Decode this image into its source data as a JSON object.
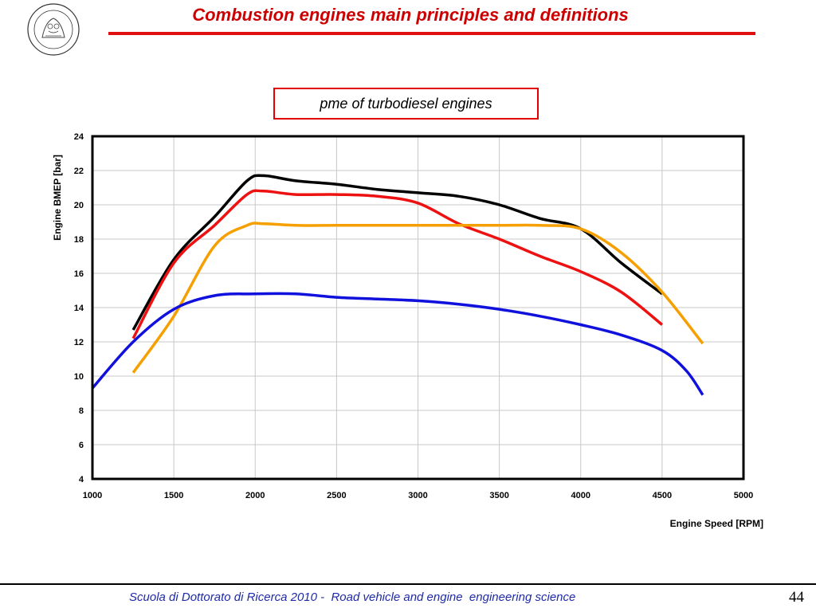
{
  "header": {
    "title": "Combustion engines main principles and definitions",
    "logo_label": "polimi-logo"
  },
  "chart_data": {
    "type": "line",
    "title": "pme of turbodiesel engines",
    "xlabel": "Engine Speed [RPM]",
    "ylabel": "Engine BMEP [bar]",
    "xlim": [
      1000,
      5000
    ],
    "ylim": [
      4,
      24
    ],
    "xticks": [
      1000,
      1500,
      2000,
      2500,
      3000,
      3500,
      4000,
      4500,
      5000
    ],
    "yticks": [
      4,
      6,
      8,
      10,
      12,
      14,
      16,
      18,
      20,
      22,
      24
    ],
    "grid": true,
    "legend": "none",
    "series": [
      {
        "color": "#000000",
        "x": [
          1250,
          1500,
          1750,
          1950,
          2050,
          2250,
          2500,
          2750,
          3000,
          3250,
          3500,
          3750,
          4000,
          4250,
          4500
        ],
        "y": [
          12.7,
          16.8,
          19.3,
          21.4,
          21.7,
          21.4,
          21.2,
          20.9,
          20.7,
          20.5,
          20.0,
          19.2,
          18.6,
          16.6,
          14.8
        ]
      },
      {
        "color": "#ee1111",
        "x": [
          1250,
          1500,
          1750,
          1950,
          2050,
          2250,
          2500,
          2750,
          3000,
          3250,
          3500,
          3750,
          4000,
          4250,
          4500
        ],
        "y": [
          12.2,
          16.6,
          18.8,
          20.6,
          20.8,
          20.6,
          20.6,
          20.5,
          20.1,
          18.9,
          18.0,
          17.0,
          16.1,
          14.9,
          13.0
        ]
      },
      {
        "color": "#f5a000",
        "x": [
          1250,
          1500,
          1750,
          1950,
          2050,
          2250,
          2500,
          2750,
          3000,
          3250,
          3500,
          3750,
          4000,
          4250,
          4500,
          4750
        ],
        "y": [
          10.2,
          13.5,
          17.6,
          18.8,
          18.9,
          18.8,
          18.8,
          18.8,
          18.8,
          18.8,
          18.8,
          18.8,
          18.6,
          17.2,
          14.9,
          11.9
        ]
      },
      {
        "color": "#1111dd",
        "x": [
          1000,
          1250,
          1500,
          1750,
          2000,
          2250,
          2500,
          2750,
          3000,
          3250,
          3500,
          3750,
          4000,
          4250,
          4500,
          4650,
          4750
        ],
        "y": [
          9.3,
          12.0,
          13.9,
          14.7,
          14.8,
          14.8,
          14.6,
          14.5,
          14.4,
          14.2,
          13.9,
          13.5,
          13.0,
          12.4,
          11.5,
          10.3,
          8.9
        ]
      }
    ]
  },
  "footer": {
    "text": "Scuola di Dottorato di Ricerca 2010 -  Road vehicle and engine  engineering science",
    "page_number": "44"
  }
}
